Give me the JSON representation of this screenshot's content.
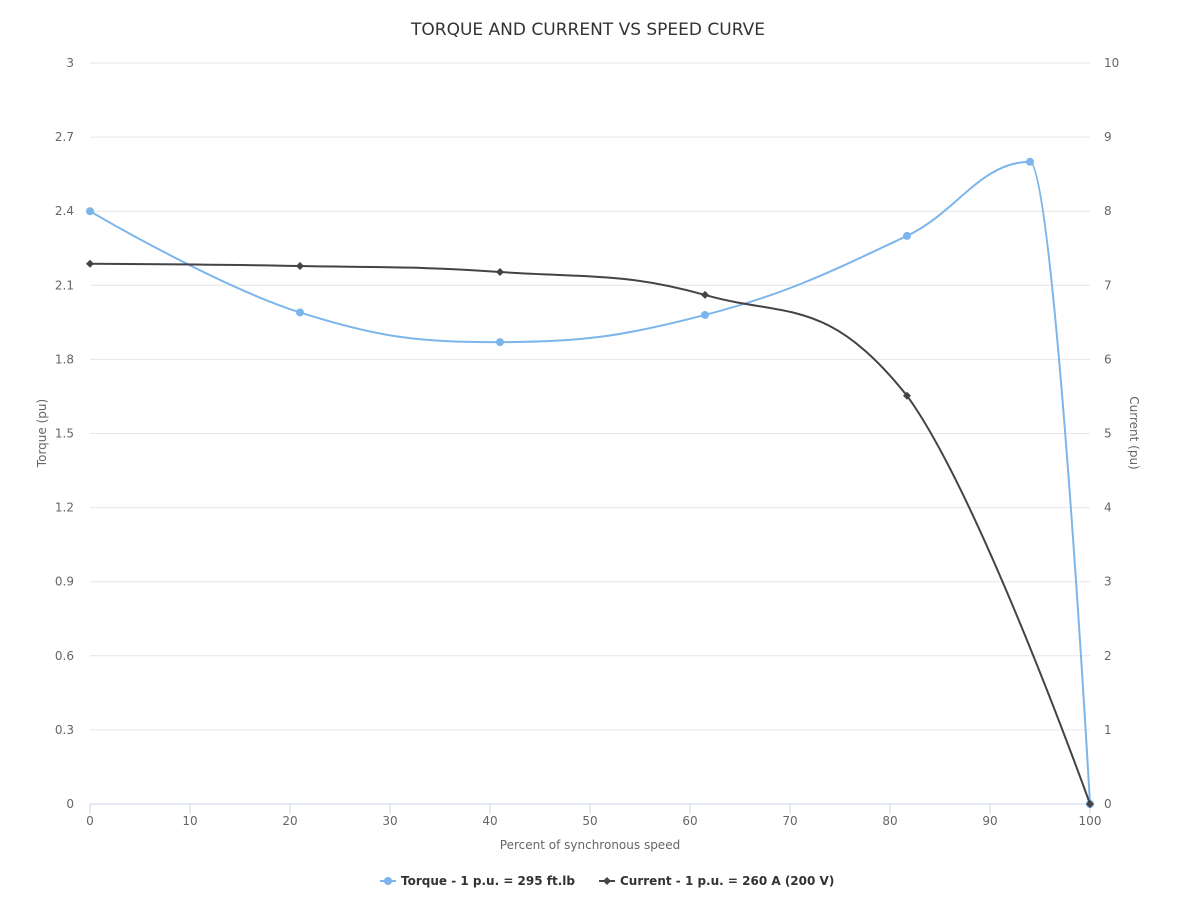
{
  "chart_data": {
    "type": "spline",
    "title": "TORQUE AND CURRENT VS SPEED CURVE",
    "x_label": "Percent of synchronous speed",
    "y_label": "Torque (pu)",
    "y2_label": "Current (pu)",
    "xlim": [
      0,
      100
    ],
    "xticks": [
      0,
      10,
      20,
      30,
      40,
      50,
      60,
      70,
      80,
      90,
      100
    ],
    "ylim": [
      0,
      3
    ],
    "yticks": [
      0,
      0.3,
      0.6,
      0.9,
      1.2,
      1.5,
      1.8,
      2.1,
      2.4,
      2.7,
      3
    ],
    "y2lim": [
      0,
      10
    ],
    "y2ticks": [
      0,
      1,
      2,
      3,
      4,
      5,
      6,
      7,
      8,
      9,
      10
    ],
    "grid": true,
    "legend": "bottom",
    "series": [
      {
        "name": "Torque - 1 p.u. = 295 ft.lb",
        "color": "#7cb5ec",
        "marker": "circle",
        "x": [
          0,
          21,
          41,
          61.5,
          81.7,
          94,
          100
        ],
        "values": [
          2.4,
          1.99,
          1.87,
          1.98,
          2.3,
          2.6,
          0
        ]
      },
      {
        "name": "Current - 1 p.u. = 260 A (200 V)",
        "color": "#434348",
        "marker": "diamond",
        "axis": "y2",
        "x": [
          0,
          21,
          41,
          61.5,
          81.7,
          100
        ],
        "values": [
          7.29,
          7.26,
          7.18,
          6.87,
          5.51,
          0
        ]
      }
    ]
  }
}
